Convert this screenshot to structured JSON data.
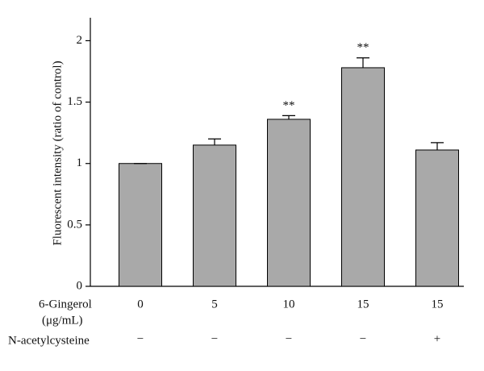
{
  "chart_data": {
    "type": "bar",
    "y_label": "Fluorescent intensity (ratio of control)",
    "category_label": [
      "6-Gingerol",
      "(μg/mL)"
    ],
    "categories": [
      "0",
      "5",
      "10",
      "15",
      "15"
    ],
    "treatment_label": "N-acetylcysteine",
    "treatment": [
      "−",
      "−",
      "−",
      "−",
      "+"
    ],
    "values": [
      1.0,
      1.15,
      1.36,
      1.78,
      1.11
    ],
    "errors": [
      0,
      0.05,
      0.03,
      0.08,
      0.06
    ],
    "significance": [
      null,
      null,
      "**",
      "**",
      null
    ],
    "color": "#a9a9a9",
    "ylim": [
      0,
      2.2
    ],
    "yticks": [
      0,
      0.5,
      1,
      1.5,
      2
    ]
  }
}
